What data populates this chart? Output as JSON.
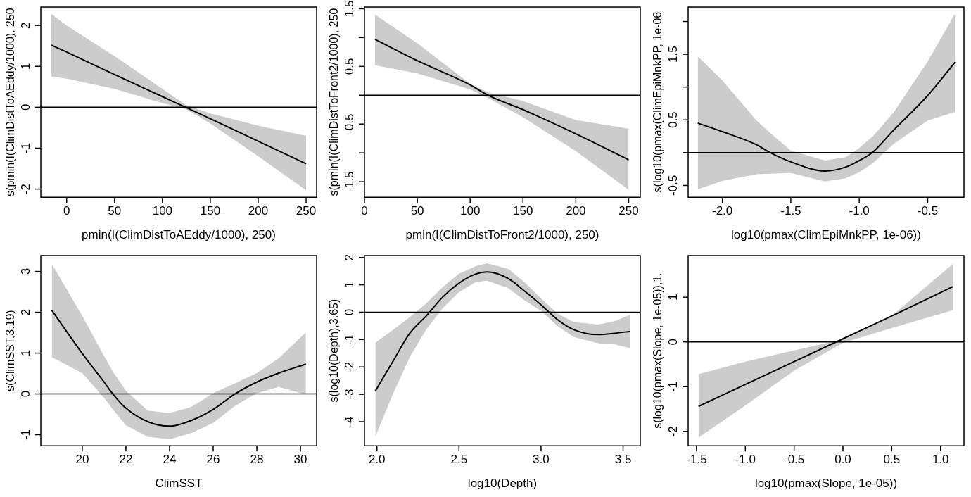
{
  "chart_data": [
    {
      "type": "line",
      "xlabel": "pmin(I(ClimDistToAEddy/1000), 250)",
      "ylabel": "s(pmin(I(ClimDistToAEddy/1000), 250",
      "xlim": [
        -27,
        261
      ],
      "ylim": [
        -2.2,
        2.45
      ],
      "xticks": [
        0,
        50,
        100,
        150,
        200,
        250
      ],
      "yticks": [
        -2,
        -1,
        0,
        1,
        2
      ],
      "grid": false,
      "ref_lines": [
        {
          "axis": "y",
          "value": 0,
          "color": "#000000"
        }
      ],
      "series": [
        {
          "color": "#000000",
          "x": [
            -16,
            0,
            50,
            100,
            125,
            150,
            200,
            250
          ],
          "values": [
            1.52,
            1.35,
            0.8,
            0.26,
            -0.01,
            -0.28,
            -0.83,
            -1.38
          ],
          "upper": [
            2.28,
            2.0,
            1.25,
            0.45,
            0.05,
            -0.15,
            -0.45,
            -0.7
          ],
          "lower": [
            0.75,
            0.7,
            0.45,
            0.1,
            -0.05,
            -0.4,
            -1.2,
            -2.03
          ]
        }
      ]
    },
    {
      "type": "line",
      "xlabel": "pmin(I(ClimDistToFront2/1000), 250)",
      "ylabel": "s(pmin(I(ClimDistToFront2/1000), 250",
      "xlim": [
        0,
        261
      ],
      "ylim": [
        -1.77,
        1.53
      ],
      "xticks": [
        0,
        50,
        100,
        150,
        200,
        250
      ],
      "yticks": [
        -1.5,
        {
          "value": -1,
          "label": null
        },
        -0.5,
        {
          "value": 0,
          "label": null
        },
        0.5,
        {
          "value": 1,
          "label": null
        },
        1.5
      ],
      "grid": false,
      "ref_lines": [
        {
          "axis": "y",
          "value": 0,
          "color": "#000000"
        }
      ],
      "series": [
        {
          "color": "#000000",
          "x": [
            10,
            50,
            100,
            117,
            150,
            200,
            250
          ],
          "values": [
            0.97,
            0.6,
            0.18,
            0,
            -0.25,
            -0.67,
            -1.12
          ],
          "upper": [
            1.4,
            0.9,
            0.2,
            0.05,
            -0.1,
            -0.43,
            -0.58
          ],
          "lower": [
            0.52,
            0.38,
            0.1,
            -0.05,
            -0.38,
            -0.97,
            -1.64
          ]
        }
      ]
    },
    {
      "type": "line",
      "xlabel": "log10(pmax(ClimEpiMnkPP, 1e-06))",
      "ylabel": "s(log10(pmax(ClimEpiMnkPP, 1e-06",
      "xlim": [
        -2.25,
        -0.235
      ],
      "ylim": [
        -0.68,
        2.22
      ],
      "xticks": [
        {
          "value": -2,
          "label": "-2.0"
        },
        {
          "value": -1.5,
          "label": "-1.5"
        },
        {
          "value": -1,
          "label": "-1.0"
        },
        {
          "value": -0.5,
          "label": "-0.5"
        }
      ],
      "yticks": [
        -0.5,
        {
          "value": 0,
          "label": null
        },
        0.5,
        {
          "value": 1,
          "label": null
        },
        1.5,
        {
          "value": 2,
          "label": null
        }
      ],
      "grid": false,
      "ref_lines": [
        {
          "axis": "y",
          "value": 0,
          "color": "#000000"
        }
      ],
      "series": [
        {
          "color": "#000000",
          "x": [
            -2.18,
            -2.0,
            -1.75,
            -1.65,
            -1.5,
            -1.25,
            -1.1,
            -1.0,
            -0.9,
            -0.75,
            -0.5,
            -0.3
          ],
          "values": [
            0.45,
            0.32,
            0.12,
            0,
            -0.14,
            -0.28,
            -0.22,
            -0.12,
            0.01,
            0.34,
            0.87,
            1.38
          ],
          "upper": [
            1.47,
            1.1,
            0.49,
            0.3,
            0.03,
            -0.12,
            -0.07,
            0.07,
            0.25,
            0.61,
            1.39,
            2.12
          ],
          "lower": [
            -0.56,
            -0.43,
            -0.33,
            -0.32,
            -0.31,
            -0.44,
            -0.39,
            -0.3,
            -0.16,
            0.13,
            0.49,
            0.62
          ]
        }
      ]
    },
    {
      "type": "line",
      "xlabel": "ClimSST",
      "ylabel": "s(ClimSST,3.19)",
      "xlim": [
        18.1,
        30.74
      ],
      "ylim": [
        -1.27,
        3.39
      ],
      "xticks": [
        20,
        22,
        24,
        26,
        28,
        30
      ],
      "yticks": [
        -1,
        0,
        1,
        2,
        3
      ],
      "grid": false,
      "ref_lines": [
        {
          "axis": "y",
          "value": 0,
          "color": "#000000"
        }
      ],
      "series": [
        {
          "color": "#000000",
          "x": [
            18.6,
            20,
            21,
            21.4,
            22,
            23,
            24,
            25,
            26,
            27,
            28,
            29,
            30.25
          ],
          "values": [
            2.05,
            0.99,
            0.29,
            0,
            -0.35,
            -0.68,
            -0.79,
            -0.65,
            -0.38,
            0,
            0.29,
            0.51,
            0.73
          ],
          "upper": [
            3.19,
            1.91,
            0.93,
            0.55,
            0.08,
            -0.41,
            -0.47,
            -0.32,
            0.02,
            0.26,
            0.51,
            0.87,
            1.51
          ],
          "lower": [
            0.9,
            0.51,
            -0.1,
            -0.38,
            -0.77,
            -1.05,
            -1.11,
            -0.96,
            -0.71,
            -0.29,
            0.02,
            0.17,
            -0.01
          ]
        }
      ]
    },
    {
      "type": "line",
      "xlabel": "log10(Depth)",
      "ylabel": "s(log10(Depth),3.65)",
      "xlim": [
        1.924,
        3.605
      ],
      "ylim": [
        -4.88,
        2.07
      ],
      "xticks": [
        {
          "value": 2,
          "label": "2.0"
        },
        {
          "value": 2.5,
          "label": "2.5"
        },
        {
          "value": 3,
          "label": "3.0"
        },
        {
          "value": 3.5,
          "label": "3.5"
        }
      ],
      "yticks": [
        -4,
        -3,
        -2,
        -1,
        0,
        1,
        2
      ],
      "grid": false,
      "ref_lines": [
        {
          "axis": "y",
          "value": 0,
          "color": "#000000"
        }
      ],
      "series": [
        {
          "color": "#000000",
          "x": [
            1.99,
            2.1,
            2.2,
            2.3,
            2.4,
            2.5,
            2.6,
            2.67,
            2.8,
            2.9,
            3.0,
            3.1,
            3.2,
            3.35,
            3.45,
            3.545
          ],
          "values": [
            -2.88,
            -1.77,
            -0.77,
            -0.14,
            0.55,
            1.06,
            1.39,
            1.47,
            1.23,
            0.77,
            0.27,
            -0.27,
            -0.64,
            -0.82,
            -0.77,
            -0.7
          ],
          "upper": [
            -1.11,
            -0.64,
            -0.18,
            0.32,
            0.91,
            1.41,
            1.68,
            1.79,
            1.59,
            1.09,
            0.5,
            -0.05,
            -0.36,
            -0.45,
            -0.32,
            -0.09
          ],
          "lower": [
            -4.55,
            -2.95,
            -1.64,
            -0.64,
            0.14,
            0.73,
            1.09,
            1.15,
            0.88,
            0.43,
            0.05,
            -0.5,
            -0.91,
            -1.14,
            -1.18,
            -1.32
          ]
        }
      ]
    },
    {
      "type": "line",
      "xlabel": "log10(pmax(Slope, 1e-05))",
      "ylabel": "s(log10(pmax(Slope, 1e-05)),1.",
      "xlim": [
        -1.586,
        1.24
      ],
      "ylim": [
        -2.32,
        1.93
      ],
      "xticks": [
        {
          "value": -1.5,
          "label": "-1.5"
        },
        {
          "value": -1,
          "label": "-1.0"
        },
        {
          "value": -0.5,
          "label": "-0.5"
        },
        {
          "value": 0,
          "label": "0.0"
        },
        {
          "value": 0.5,
          "label": "0.5"
        },
        {
          "value": 1,
          "label": "1.0"
        }
      ],
      "yticks": [
        -2,
        -1,
        0,
        1
      ],
      "grid": false,
      "ref_lines": [
        {
          "axis": "y",
          "value": 0,
          "color": "#000000"
        }
      ],
      "series": [
        {
          "color": "#000000",
          "x": [
            -1.48,
            -1,
            -0.5,
            0,
            0.5,
            1.13
          ],
          "values": [
            -1.44,
            -0.95,
            -0.44,
            0.07,
            0.58,
            1.24
          ],
          "upper": [
            -0.72,
            -0.44,
            -0.19,
            0.06,
            0.58,
            1.75
          ],
          "lower": [
            -2.14,
            -1.42,
            -0.64,
            -0.02,
            0.31,
            0.71
          ]
        }
      ]
    }
  ]
}
